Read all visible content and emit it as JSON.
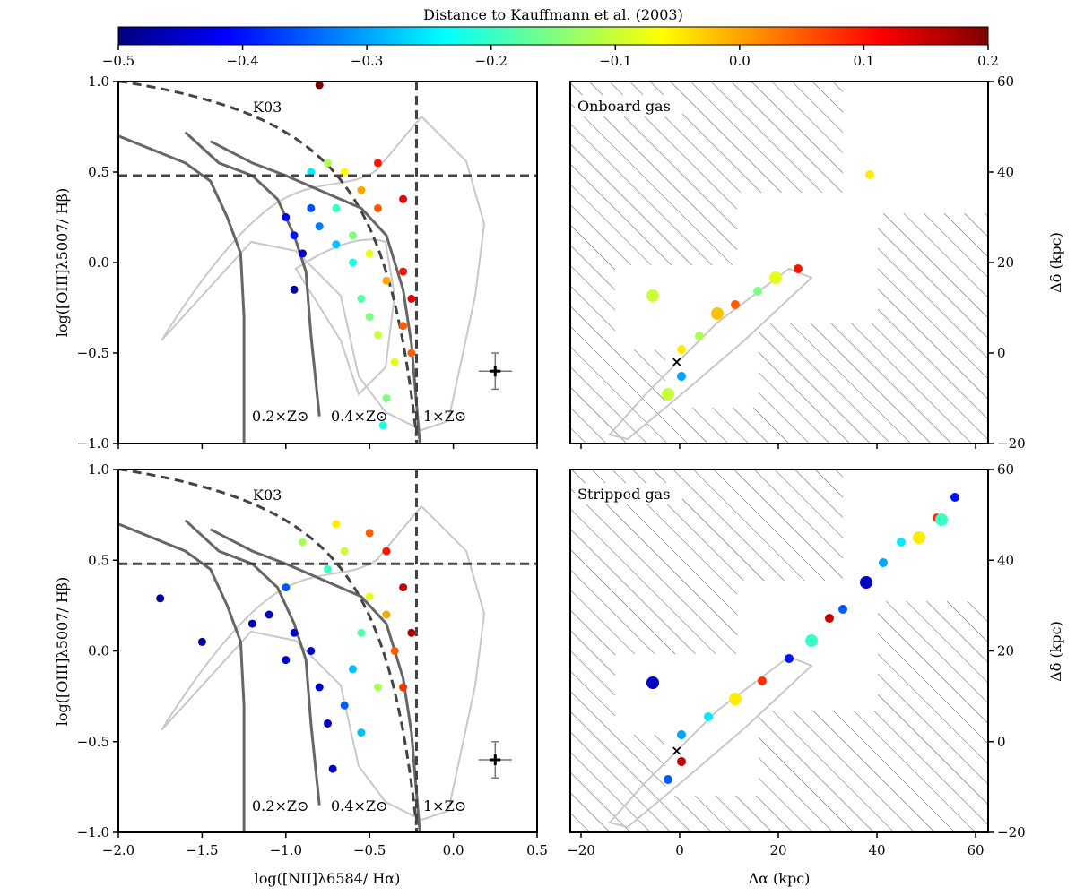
{
  "colorbar": {
    "label": "Distance to Kauffmann et al. (2003)",
    "ticks": [
      "−0.5",
      "−0.4",
      "−0.3",
      "−0.2",
      "−0.1",
      "0.0",
      "0.1",
      "0.2"
    ],
    "range": [
      -0.5,
      0.2
    ],
    "colormap": [
      "#00007f",
      "#0000ff",
      "#007fff",
      "#00ffff",
      "#7fff7f",
      "#ffff00",
      "#ff7f00",
      "#ff0000",
      "#7f0000"
    ]
  },
  "bpt": {
    "xlabel": "log([NII]λ6584/ Hα)",
    "ylabel": "log([OIII]λ5007/ Hβ)",
    "xticks": [
      "−2.0",
      "−1.5",
      "−1.0",
      "−0.5",
      "0.0",
      "0.5"
    ],
    "yticks": [
      "1.0",
      "0.5",
      "0.0",
      "−0.5",
      "−1.0"
    ],
    "curve_label": "K03",
    "metallicity_labels": [
      "0.2×Z⊙",
      "0.4×Z⊙",
      "1×Z⊙"
    ]
  },
  "maps": {
    "xlabel": "Δα (kpc)",
    "ylabel": "Δδ (kpc)",
    "xticks": [
      "−20",
      "0",
      "20",
      "40",
      "60"
    ],
    "yticks": [
      "60",
      "40",
      "20",
      "0",
      "−20"
    ],
    "top_title": "Onboard gas",
    "bottom_title": "Stripped gas"
  },
  "chart_data": [
    {
      "type": "scatter",
      "panel": "top-left",
      "xlabel": "log([NII]λ6584/ Hα)",
      "ylabel": "log([OIII]λ5007/ Hβ)",
      "xlim": [
        -2.0,
        0.5
      ],
      "ylim": [
        -1.0,
        1.0
      ],
      "reference_lines": {
        "horizontal_y": 0.48,
        "vertical_x": -0.22
      },
      "error_bar": {
        "x": 0.25,
        "y": -0.6,
        "xerr": 0.1,
        "yerr": 0.1
      },
      "points": [
        {
          "x": -0.85,
          "y": 0.5,
          "d": -0.25
        },
        {
          "x": -1.0,
          "y": 0.25,
          "d": -0.42
        },
        {
          "x": -0.95,
          "y": 0.15,
          "d": -0.4
        },
        {
          "x": -0.9,
          "y": 0.05,
          "d": -0.45
        },
        {
          "x": -0.95,
          "y": -0.15,
          "d": -0.48
        },
        {
          "x": -0.75,
          "y": 0.55,
          "d": -0.12
        },
        {
          "x": -0.65,
          "y": 0.5,
          "d": -0.06
        },
        {
          "x": -0.55,
          "y": 0.4,
          "d": 0.0
        },
        {
          "x": -0.45,
          "y": 0.3,
          "d": 0.05
        },
        {
          "x": -0.3,
          "y": 0.35,
          "d": 0.12
        },
        {
          "x": -0.7,
          "y": 0.3,
          "d": -0.2
        },
        {
          "x": -0.6,
          "y": 0.15,
          "d": -0.15
        },
        {
          "x": -0.5,
          "y": 0.05,
          "d": -0.08
        },
        {
          "x": -0.4,
          "y": -0.1,
          "d": 0.0
        },
        {
          "x": -0.3,
          "y": -0.05,
          "d": 0.1
        },
        {
          "x": -0.25,
          "y": -0.2,
          "d": 0.13
        },
        {
          "x": -0.55,
          "y": -0.2,
          "d": -0.18
        },
        {
          "x": -0.45,
          "y": -0.4,
          "d": -0.1
        },
        {
          "x": -0.35,
          "y": -0.55,
          "d": -0.08
        },
        {
          "x": -0.4,
          "y": -0.75,
          "d": -0.15
        },
        {
          "x": -0.42,
          "y": -0.9,
          "d": -0.22
        },
        {
          "x": -0.6,
          "y": 0.0,
          "d": -0.22
        },
        {
          "x": -0.7,
          "y": 0.1,
          "d": -0.28
        },
        {
          "x": -0.8,
          "y": 0.2,
          "d": -0.33
        },
        {
          "x": -0.85,
          "y": 0.3,
          "d": -0.36
        },
        {
          "x": -0.5,
          "y": -0.3,
          "d": -0.15
        },
        {
          "x": -0.3,
          "y": -0.35,
          "d": 0.05
        },
        {
          "x": -0.25,
          "y": -0.5,
          "d": 0.05
        },
        {
          "x": -0.45,
          "y": 0.55,
          "d": 0.1
        },
        {
          "x": -0.8,
          "y": 0.98,
          "d": 0.2
        }
      ]
    },
    {
      "type": "scatter",
      "panel": "bottom-left",
      "xlabel": "log([NII]λ6584/ Hα)",
      "ylabel": "log([OIII]λ5007/ Hβ)",
      "xlim": [
        -2.0,
        0.5
      ],
      "ylim": [
        -1.0,
        1.0
      ],
      "reference_lines": {
        "horizontal_y": 0.48,
        "vertical_x": -0.22
      },
      "error_bar": {
        "x": 0.25,
        "y": -0.6,
        "xerr": 0.1,
        "yerr": 0.1
      },
      "points": [
        {
          "x": -1.75,
          "y": 0.29,
          "d": -0.48
        },
        {
          "x": -1.5,
          "y": 0.05,
          "d": -0.48
        },
        {
          "x": -1.2,
          "y": 0.15,
          "d": -0.47
        },
        {
          "x": -1.1,
          "y": 0.2,
          "d": -0.46
        },
        {
          "x": -1.0,
          "y": 0.35,
          "d": -0.35
        },
        {
          "x": -0.9,
          "y": 0.6,
          "d": -0.12
        },
        {
          "x": -0.7,
          "y": 0.7,
          "d": -0.05
        },
        {
          "x": -0.5,
          "y": 0.65,
          "d": 0.05
        },
        {
          "x": -0.4,
          "y": 0.55,
          "d": 0.1
        },
        {
          "x": -0.3,
          "y": 0.35,
          "d": 0.15
        },
        {
          "x": -0.25,
          "y": 0.1,
          "d": 0.17
        },
        {
          "x": -0.85,
          "y": 0.0,
          "d": -0.45
        },
        {
          "x": -0.8,
          "y": -0.2,
          "d": -0.45
        },
        {
          "x": -0.75,
          "y": -0.4,
          "d": -0.45
        },
        {
          "x": -0.72,
          "y": -0.65,
          "d": -0.45
        },
        {
          "x": -0.65,
          "y": -0.3,
          "d": -0.35
        },
        {
          "x": -0.6,
          "y": -0.1,
          "d": -0.28
        },
        {
          "x": -0.55,
          "y": 0.1,
          "d": -0.18
        },
        {
          "x": -0.5,
          "y": 0.3,
          "d": -0.08
        },
        {
          "x": -0.4,
          "y": 0.2,
          "d": 0.0
        },
        {
          "x": -0.35,
          "y": 0.0,
          "d": 0.05
        },
        {
          "x": -0.45,
          "y": -0.2,
          "d": -0.12
        },
        {
          "x": -0.55,
          "y": -0.45,
          "d": -0.28
        },
        {
          "x": -0.3,
          "y": -0.2,
          "d": 0.08
        },
        {
          "x": -0.95,
          "y": 0.1,
          "d": -0.45
        },
        {
          "x": -1.0,
          "y": -0.05,
          "d": -0.45
        },
        {
          "x": -0.75,
          "y": 0.45,
          "d": -0.2
        },
        {
          "x": -0.65,
          "y": 0.55,
          "d": -0.1
        }
      ]
    }
  ]
}
